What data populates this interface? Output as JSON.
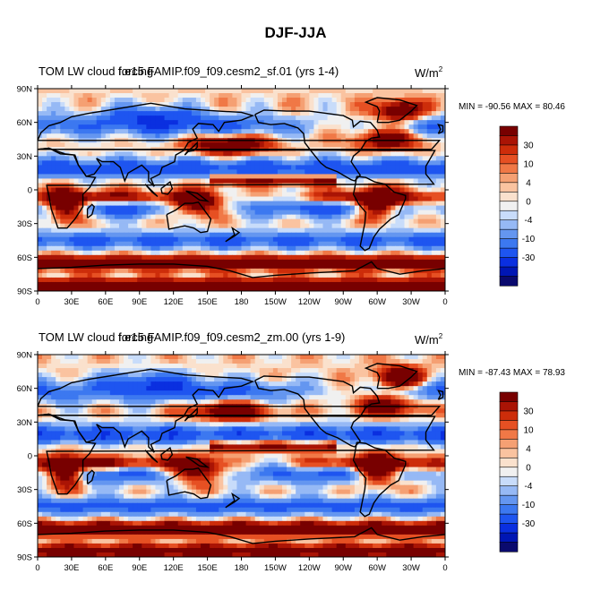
{
  "title": "DJF-JJA",
  "colors": {
    "palette": [
      "#0a0a6e",
      "#0016b4",
      "#0a2fe0",
      "#1e55f0",
      "#3c78f0",
      "#6496f0",
      "#96b9f5",
      "#c8dcfa",
      "#f0f0f0",
      "#fae1cd",
      "#fac3a0",
      "#f5a073",
      "#f07846",
      "#e65023",
      "#cd2d0a",
      "#aa1405",
      "#780000"
    ],
    "coast": "#000000"
  },
  "chart_data": [
    {
      "type": "contour-map",
      "variable": "TOM LW cloud forcing",
      "case": "f.e15.FAMIP.f09_f09.cesm2_sf.01 (yrs 1-4)",
      "units": "W/m",
      "units_exp": "2",
      "min_label": "MIN =",
      "min": "-90.56",
      "max_label": "MAX =",
      "max": "80.46",
      "lat_ticks": [
        "90N",
        "60N",
        "30N",
        "0",
        "30S",
        "60S",
        "90S"
      ],
      "lon_ticks": [
        "0",
        "30E",
        "60E",
        "90E",
        "120E",
        "150E",
        "180",
        "150W",
        "120W",
        "90W",
        "60W",
        "30W",
        "0"
      ],
      "colorbar_labels": [
        "30",
        "10",
        "4",
        "0",
        "-4",
        "-10",
        "-30"
      ],
      "levels": [
        -50,
        -40,
        -30,
        -20,
        -15,
        -10,
        -6,
        -4,
        -2,
        0,
        2,
        4,
        6,
        10,
        15,
        20,
        30,
        40
      ]
    },
    {
      "type": "contour-map",
      "variable": "TOM LW cloud forcing",
      "case": "f.e15.FAMIP.f09_f09.cesm2_zm.00 (yrs 1-9)",
      "units": "W/m",
      "units_exp": "2",
      "min_label": "MIN =",
      "min": "-87.43",
      "max_label": "MAX =",
      "max": "78.93",
      "lat_ticks": [
        "90N",
        "60N",
        "30N",
        "0",
        "30S",
        "60S",
        "90S"
      ],
      "lon_ticks": [
        "0",
        "30E",
        "60E",
        "90E",
        "120E",
        "150E",
        "180",
        "150W",
        "120W",
        "90W",
        "60W",
        "30W",
        "0"
      ],
      "colorbar_labels": [
        "30",
        "10",
        "4",
        "0",
        "-4",
        "-10",
        "-30"
      ],
      "levels": [
        -50,
        -40,
        -30,
        -20,
        -15,
        -10,
        -6,
        -4,
        -2,
        0,
        2,
        4,
        6,
        10,
        15,
        20,
        30,
        40
      ]
    }
  ]
}
